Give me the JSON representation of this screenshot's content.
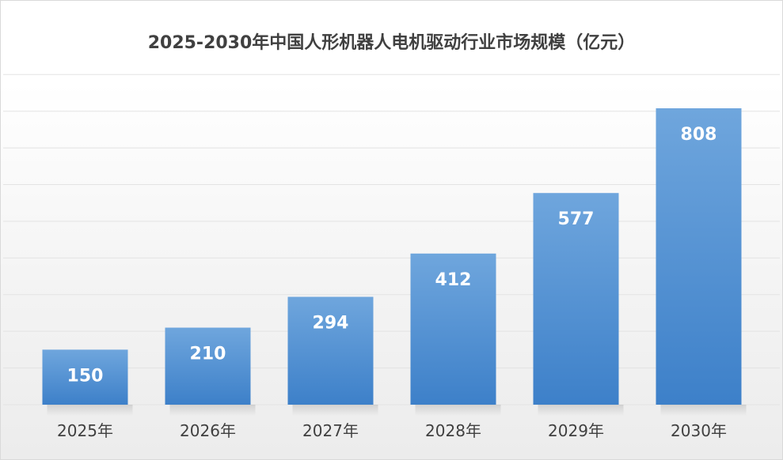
{
  "chart_data": {
    "type": "bar",
    "title": "2025-2030年中国人形机器人电机驱动行业市场规模（亿元）",
    "categories": [
      "2025年",
      "2026年",
      "2027年",
      "2028年",
      "2029年",
      "2030年"
    ],
    "values": [
      150,
      210,
      294,
      412,
      577,
      808
    ],
    "xlabel": "",
    "ylabel": "",
    "ylim": [
      0,
      900
    ],
    "grid": true,
    "legend": "none",
    "colors": {
      "bar_top": "#6fa6dd",
      "bar_bottom": "#3d80c9",
      "label": "#ffffff",
      "title": "#404040"
    }
  }
}
